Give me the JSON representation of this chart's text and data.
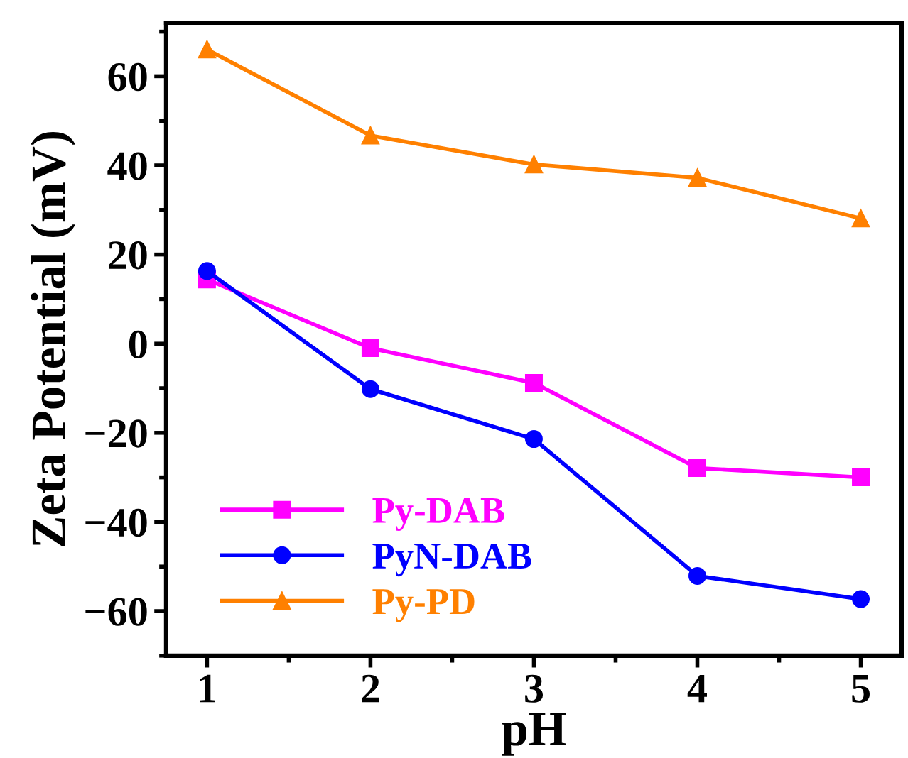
{
  "chart_data": {
    "type": "line",
    "xlabel": "pH",
    "ylabel": "Zeta Potential (mV)",
    "x": [
      1,
      2,
      3,
      4,
      5
    ],
    "xlim": [
      0.75,
      5.25
    ],
    "xticks": [
      1,
      2,
      3,
      4,
      5
    ],
    "ylim": [
      -70,
      72
    ],
    "yticks": [
      -60,
      -40,
      -20,
      0,
      20,
      40,
      60
    ],
    "grid": false,
    "legend": "bottom left",
    "line_style": "solid",
    "series": [
      {
        "name": "Py-DAB",
        "color": "#ff00ff",
        "marker": "square",
        "values": [
          14.4,
          -1,
          -8.8,
          -27.9,
          -30
        ]
      },
      {
        "name": "PyN-DAB",
        "color": "#0000ff",
        "marker": "circle",
        "values": [
          16.3,
          -10.2,
          -21.4,
          -52.1,
          -57.3
        ]
      },
      {
        "name": "Py-PD",
        "color": "#ff8000",
        "marker": "triangle",
        "values": [
          66,
          46.7,
          40.2,
          37.2,
          28.1
        ]
      }
    ]
  }
}
